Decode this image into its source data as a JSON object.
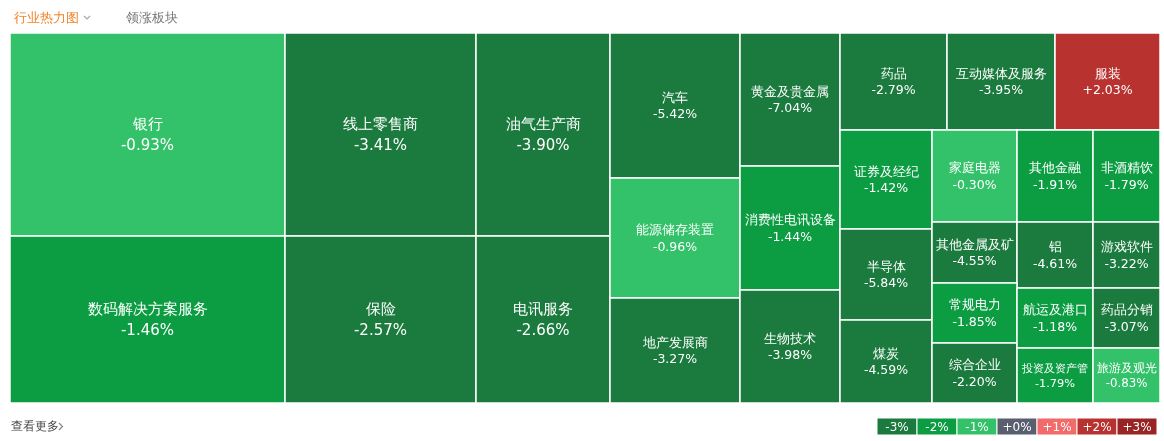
{
  "chart_data": [
    {
      "type": "other",
      "annotations": [
        "行业热力图",
        "领涨板块",
        "查看更多"
      ],
      "categories": [
        "银行",
        "数码解决方案服务",
        "线上零售商",
        "保险",
        "油气生产商",
        "电讯服务",
        "汽车",
        "能源储存装置",
        "地产发展商",
        "黄金及贵金属",
        "消费性电讯设备",
        "生物技术",
        "药品",
        "互动媒体及服务",
        "服装",
        "证券及经纪",
        "家庭电器",
        "其他金融",
        "非酒精饮",
        "半导体",
        "煤炭",
        "其他金属及矿",
        "铝",
        "游戏软件",
        "常规电力",
        "综合企业",
        "航运及港口",
        "药品分销",
        "投资及资产管",
        "旅游及观光"
      ],
      "values": [
        -0.93,
        -1.46,
        -3.41,
        -2.57,
        -3.9,
        -2.66,
        -5.42,
        -0.96,
        -3.27,
        -7.04,
        -1.44,
        -3.98,
        -2.79,
        -3.95,
        2.03,
        -1.42,
        -0.3,
        -1.91,
        -1.79,
        -5.84,
        -4.59,
        -4.55,
        -4.61,
        -3.22,
        -1.85,
        -2.2,
        -1.18,
        -3.07,
        -1.79,
        -0.83
      ],
      "value_labels": [
        "-0.93%",
        "-1.46%",
        "-3.41%",
        "-2.57%",
        "-3.90%",
        "-2.66%",
        "-5.42%",
        "-0.96%",
        "-3.27%",
        "-7.04%",
        "-1.44%",
        "-3.98%",
        "-2.79%",
        "-3.95%",
        "+2.03%",
        "-1.42%",
        "-0.30%",
        "-1.91%",
        "-1.79%",
        "-5.84%",
        "-4.59%",
        "-4.55%",
        "-4.61%",
        "-3.22%",
        "-1.85%",
        "-2.20%",
        "-1.18%",
        "-3.07%",
        "-1.79%",
        "-0.83%"
      ]
    },
    {
      "type": "heatmap",
      "categories": [
        null,
        null,
        null,
        null,
        null,
        null,
        null
      ],
      "y_categories": [
        null
      ],
      "cells": [
        [
          -3,
          -2,
          -1,
          0,
          1,
          2,
          3
        ]
      ],
      "cell_labels": [
        [
          "-3%",
          "-2%",
          "-1%",
          "+0%",
          "+1%",
          "+2%",
          "+3%"
        ]
      ],
      "colors": [
        "#1b7a3d",
        "#0c9d43",
        "#33c26a",
        "#5a5f70",
        "#f26b6b",
        "#b8322f",
        "#9a2424"
      ]
    }
  ]
}
